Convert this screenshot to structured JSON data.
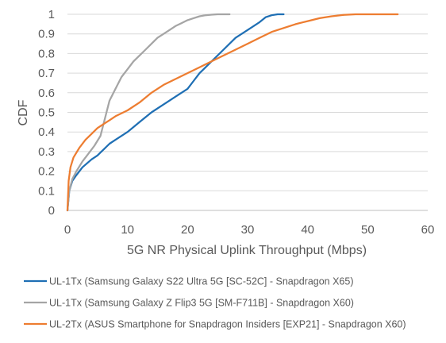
{
  "chart_data": {
    "type": "line",
    "xlabel": "5G NR Physical Uplink Throughput (Mbps)",
    "ylabel": "CDF",
    "xlim": [
      0,
      60
    ],
    "ylim": [
      0,
      1
    ],
    "x_ticks": [
      "0",
      "10",
      "20",
      "30",
      "40",
      "50",
      "60"
    ],
    "y_ticks": [
      "0",
      "0.1",
      "0.2",
      "0.3",
      "0.4",
      "0.5",
      "0.6",
      "0.7",
      "0.8",
      "0.9",
      "1"
    ],
    "grid": "horizontal",
    "legend_position": "bottom",
    "series": [
      {
        "name": "UL-1Tx (Samsung Galaxy S22 Ultra 5G [SC-52C] - Snapdragon X65)",
        "color": "#1f6fb4",
        "x": [
          0,
          0.3,
          0.8,
          1.5,
          2.5,
          4,
          5,
          6,
          7,
          8,
          10,
          12,
          14,
          16,
          18,
          20,
          21,
          22,
          24,
          26,
          28,
          30,
          32,
          33,
          34,
          35,
          36
        ],
        "y": [
          0,
          0.1,
          0.15,
          0.18,
          0.22,
          0.26,
          0.28,
          0.31,
          0.34,
          0.36,
          0.4,
          0.45,
          0.5,
          0.54,
          0.58,
          0.62,
          0.66,
          0.7,
          0.76,
          0.82,
          0.88,
          0.92,
          0.96,
          0.985,
          0.995,
          1,
          1
        ]
      },
      {
        "name": "UL-1Tx (Samsung Galaxy Z Flip3 5G [SM-F711B] - Snapdragon X60)",
        "color": "#a5a5a5",
        "x": [
          0,
          0.3,
          0.8,
          1.5,
          2.5,
          3.5,
          4.5,
          5.5,
          6,
          6.5,
          7,
          8,
          9,
          10,
          11,
          12,
          13,
          14,
          15,
          16,
          17,
          18,
          19,
          20,
          21,
          22,
          23,
          24,
          25,
          26,
          27
        ],
        "y": [
          0,
          0.1,
          0.16,
          0.2,
          0.25,
          0.29,
          0.33,
          0.38,
          0.44,
          0.5,
          0.56,
          0.62,
          0.68,
          0.72,
          0.76,
          0.79,
          0.82,
          0.85,
          0.88,
          0.9,
          0.92,
          0.94,
          0.955,
          0.97,
          0.98,
          0.99,
          0.995,
          0.998,
          1,
          1,
          1
        ]
      },
      {
        "name": "UL-2Tx (ASUS Smartphone for Snapdragon Insiders [EXP21] - Snapdragon X60)",
        "color": "#ed7d31",
        "x": [
          0,
          0.2,
          0.5,
          1,
          2,
          3,
          4,
          5,
          6,
          7,
          8,
          10,
          12,
          14,
          16,
          18,
          20,
          22,
          24,
          26,
          28,
          30,
          32,
          34,
          36,
          38,
          40,
          42,
          44,
          46,
          48,
          50,
          52,
          55
        ],
        "y": [
          0,
          0.15,
          0.22,
          0.27,
          0.32,
          0.36,
          0.39,
          0.42,
          0.44,
          0.46,
          0.48,
          0.51,
          0.55,
          0.6,
          0.64,
          0.67,
          0.7,
          0.73,
          0.76,
          0.79,
          0.82,
          0.85,
          0.88,
          0.91,
          0.93,
          0.95,
          0.965,
          0.98,
          0.99,
          0.997,
          1,
          1,
          1,
          1
        ]
      }
    ]
  }
}
